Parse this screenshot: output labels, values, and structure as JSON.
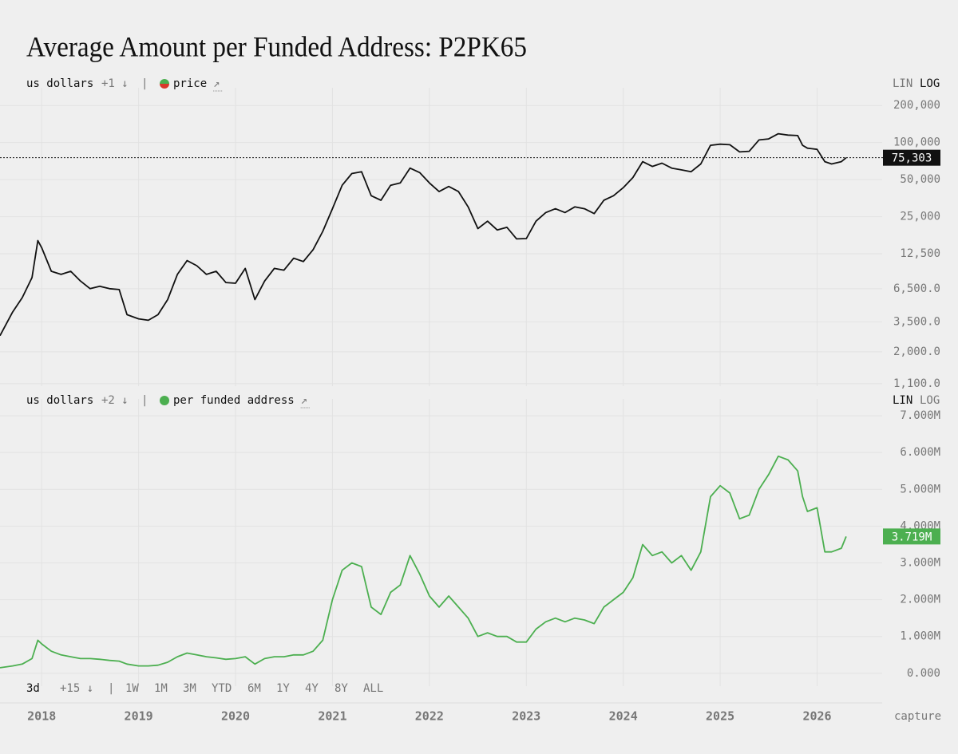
{
  "chart_data": [
    {
      "type": "line",
      "title": "Average Amount per Funded Address: P2PK65",
      "controls": {
        "unit": "us dollars",
        "extra": "+1 ↓",
        "separator": "|",
        "link": "↗",
        "scales": [
          "LIN",
          "LOG"
        ]
      },
      "legend_colors": [
        "#4caf50",
        "#d9382c"
      ],
      "log": true,
      "grid": true,
      "dotted_line": true,
      "xlim": [
        2017.57,
        2026.63
      ],
      "xticks": [
        2018,
        2019,
        2020,
        2021,
        2022,
        2023,
        2024,
        2025,
        2026
      ],
      "ylim": [
        1050,
        240000
      ],
      "yticks": [
        {
          "value": 200000,
          "label": "200,000"
        },
        {
          "value": 100000,
          "label": "100,000"
        },
        {
          "value": 50000,
          "label": "50,000"
        },
        {
          "value": 25000,
          "label": "25,000"
        },
        {
          "value": 12500,
          "label": "12,500"
        },
        {
          "value": 6500,
          "label": "6,500.0"
        },
        {
          "value": 3500,
          "label": "3,500.0"
        },
        {
          "value": 2000,
          "label": "2,000.0"
        },
        {
          "value": 1100,
          "label": "1,100.0"
        }
      ],
      "current": {
        "value": 75303,
        "label": "75,303"
      },
      "x": [
        2017.57,
        2017.7,
        2017.8,
        2017.9,
        2017.96,
        2018.0,
        2018.1,
        2018.2,
        2018.3,
        2018.4,
        2018.5,
        2018.6,
        2018.7,
        2018.8,
        2018.88,
        2019.0,
        2019.1,
        2019.2,
        2019.3,
        2019.4,
        2019.5,
        2019.6,
        2019.7,
        2019.8,
        2019.9,
        2020.0,
        2020.1,
        2020.2,
        2020.3,
        2020.4,
        2020.5,
        2020.6,
        2020.7,
        2020.8,
        2020.9,
        2021.0,
        2021.1,
        2021.2,
        2021.3,
        2021.4,
        2021.5,
        2021.6,
        2021.7,
        2021.8,
        2021.9,
        2022.0,
        2022.1,
        2022.2,
        2022.3,
        2022.4,
        2022.5,
        2022.6,
        2022.7,
        2022.8,
        2022.9,
        2023.0,
        2023.1,
        2023.2,
        2023.3,
        2023.4,
        2023.5,
        2023.6,
        2023.7,
        2023.8,
        2023.9,
        2024.0,
        2024.1,
        2024.2,
        2024.3,
        2024.4,
        2024.5,
        2024.6,
        2024.7,
        2024.8,
        2024.9,
        2025.0,
        2025.1,
        2025.2,
        2025.3,
        2025.4,
        2025.5,
        2025.6,
        2025.7,
        2025.8,
        2025.85,
        2025.9,
        2026.0,
        2026.08,
        2026.15,
        2026.25,
        2026.3
      ],
      "series": [
        {
          "name": "price",
          "color": "#111111",
          "values": [
            2700,
            4200,
            5500,
            8000,
            16000,
            14000,
            9000,
            8500,
            9000,
            7500,
            6500,
            6800,
            6500,
            6400,
            4000,
            3700,
            3600,
            4000,
            5300,
            8500,
            11000,
            10000,
            8500,
            9000,
            7300,
            7200,
            9500,
            5300,
            7500,
            9500,
            9200,
            11500,
            10800,
            13500,
            19000,
            29000,
            45000,
            56000,
            58000,
            37000,
            34000,
            45000,
            47000,
            62000,
            57000,
            47000,
            40000,
            44000,
            40000,
            30000,
            20000,
            23000,
            19500,
            20500,
            16500,
            16600,
            23000,
            27000,
            29000,
            27000,
            30000,
            29000,
            26500,
            34000,
            37000,
            43000,
            52000,
            70000,
            64000,
            68000,
            62000,
            60000,
            58000,
            67000,
            95000,
            97000,
            96000,
            84000,
            85000,
            105000,
            107000,
            118000,
            115000,
            114000,
            95000,
            90000,
            88000,
            70000,
            67000,
            70000,
            75303
          ]
        }
      ]
    },
    {
      "type": "line",
      "controls": {
        "unit": "us dollars",
        "extra": "+2 ↓",
        "separator": "|",
        "link": "↗",
        "scales": [
          "LIN",
          "LOG"
        ]
      },
      "legend_colors": [
        "#4caf50"
      ],
      "log": false,
      "grid": true,
      "dotted_line": false,
      "xlim": [
        2017.57,
        2026.63
      ],
      "xticks": [
        2018,
        2019,
        2020,
        2021,
        2022,
        2023,
        2024,
        2025,
        2026
      ],
      "ylim": [
        -0.35,
        7.24
      ],
      "yticks": [
        {
          "value": 7,
          "label": "7.000M"
        },
        {
          "value": 6,
          "label": "6.000M"
        },
        {
          "value": 5,
          "label": "5.000M"
        },
        {
          "value": 4,
          "label": "4.000M"
        },
        {
          "value": 3,
          "label": "3.000M"
        },
        {
          "value": 2,
          "label": "2.000M"
        },
        {
          "value": 1,
          "label": "1.000M"
        },
        {
          "value": 0,
          "label": "0.000"
        }
      ],
      "current": {
        "value": 3.719,
        "label": "3.719M"
      },
      "x": [
        2017.57,
        2017.7,
        2017.8,
        2017.9,
        2017.96,
        2018.0,
        2018.1,
        2018.2,
        2018.3,
        2018.4,
        2018.5,
        2018.6,
        2018.7,
        2018.8,
        2018.88,
        2019.0,
        2019.1,
        2019.2,
        2019.3,
        2019.4,
        2019.5,
        2019.6,
        2019.7,
        2019.8,
        2019.9,
        2020.0,
        2020.1,
        2020.2,
        2020.3,
        2020.4,
        2020.5,
        2020.6,
        2020.7,
        2020.8,
        2020.9,
        2021.0,
        2021.1,
        2021.2,
        2021.3,
        2021.4,
        2021.5,
        2021.6,
        2021.7,
        2021.8,
        2021.9,
        2022.0,
        2022.1,
        2022.2,
        2022.3,
        2022.4,
        2022.5,
        2022.6,
        2022.7,
        2022.8,
        2022.9,
        2023.0,
        2023.1,
        2023.2,
        2023.3,
        2023.4,
        2023.5,
        2023.6,
        2023.7,
        2023.8,
        2023.9,
        2024.0,
        2024.1,
        2024.2,
        2024.3,
        2024.4,
        2024.5,
        2024.6,
        2024.7,
        2024.8,
        2024.9,
        2025.0,
        2025.1,
        2025.2,
        2025.3,
        2025.4,
        2025.5,
        2025.6,
        2025.7,
        2025.8,
        2025.85,
        2025.9,
        2026.0,
        2026.08,
        2026.15,
        2026.25,
        2026.3
      ],
      "series": [
        {
          "name": "per funded address",
          "color": "#4caf50",
          "values": [
            0.15,
            0.2,
            0.25,
            0.4,
            0.9,
            0.8,
            0.6,
            0.5,
            0.45,
            0.4,
            0.4,
            0.38,
            0.35,
            0.33,
            0.25,
            0.2,
            0.2,
            0.22,
            0.3,
            0.45,
            0.55,
            0.5,
            0.45,
            0.42,
            0.38,
            0.4,
            0.45,
            0.25,
            0.4,
            0.45,
            0.45,
            0.5,
            0.5,
            0.6,
            0.9,
            2.0,
            2.8,
            3.0,
            2.9,
            1.8,
            1.6,
            2.2,
            2.4,
            3.2,
            2.7,
            2.1,
            1.8,
            2.1,
            1.8,
            1.5,
            1.0,
            1.1,
            1.0,
            1.0,
            0.85,
            0.85,
            1.2,
            1.4,
            1.5,
            1.4,
            1.5,
            1.45,
            1.35,
            1.8,
            2.0,
            2.2,
            2.6,
            3.5,
            3.2,
            3.3,
            3.0,
            3.2,
            2.8,
            3.3,
            4.8,
            5.1,
            4.9,
            4.2,
            4.3,
            5.0,
            5.4,
            5.9,
            5.8,
            5.5,
            4.8,
            4.4,
            4.5,
            3.3,
            3.3,
            3.4,
            3.719
          ]
        }
      ],
      "timeframe": {
        "active": "3d",
        "options": [
          "+15 ↓",
          "|",
          "1W",
          "1M",
          "3M",
          "YTD",
          "6M",
          "1Y",
          "4Y",
          "8Y",
          "ALL"
        ]
      },
      "capture": "capture"
    }
  ]
}
